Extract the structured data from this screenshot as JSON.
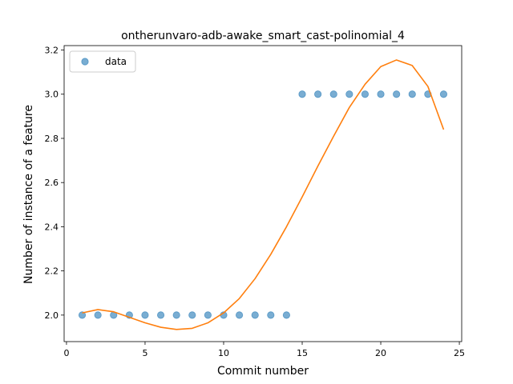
{
  "chart_data": {
    "type": "line",
    "title": "ontherunvaro-adb-awake_smart_cast-polinomial_4",
    "xlabel": "Commit number",
    "ylabel": "Number of instance of a feature",
    "xlim": [
      -0.15,
      25.15
    ],
    "ylim": [
      1.88,
      3.22
    ],
    "xticks": [
      0,
      5,
      10,
      15,
      20,
      25
    ],
    "yticks": [
      2.0,
      2.2,
      2.4,
      2.6,
      2.8,
      3.0,
      3.2
    ],
    "xtick_labels": [
      "0",
      "5",
      "10",
      "15",
      "20",
      "25"
    ],
    "ytick_labels": [
      "2.0",
      "2.2",
      "2.4",
      "2.6",
      "2.8",
      "3.0",
      "3.2"
    ],
    "grid": false,
    "legend": {
      "placement": "upper-left",
      "entries": [
        "data"
      ]
    },
    "series": [
      {
        "name": "data",
        "kind": "scatter",
        "color": "#1f77b4",
        "x": [
          1,
          2,
          3,
          4,
          5,
          6,
          7,
          8,
          9,
          10,
          11,
          12,
          13,
          14,
          15,
          16,
          17,
          18,
          19,
          20,
          21,
          22,
          23,
          24
        ],
        "y": [
          2,
          2,
          2,
          2,
          2,
          2,
          2,
          2,
          2,
          2,
          2,
          2,
          2,
          2,
          3,
          3,
          3,
          3,
          3,
          3,
          3,
          3,
          3,
          3
        ]
      },
      {
        "kind": "line",
        "color": "#ff7f0e",
        "x": [
          1,
          2,
          3,
          4,
          5,
          6,
          7,
          8,
          9,
          10,
          11,
          12,
          13,
          14,
          15,
          16,
          17,
          18,
          19,
          20,
          21,
          22,
          23,
          24
        ],
        "y": [
          2.01,
          2.025,
          2.015,
          1.99,
          1.965,
          1.945,
          1.935,
          1.94,
          1.965,
          2.01,
          2.075,
          2.165,
          2.275,
          2.4,
          2.535,
          2.675,
          2.81,
          2.94,
          3.045,
          3.125,
          3.155,
          3.13,
          3.035,
          2.84
        ]
      }
    ]
  }
}
